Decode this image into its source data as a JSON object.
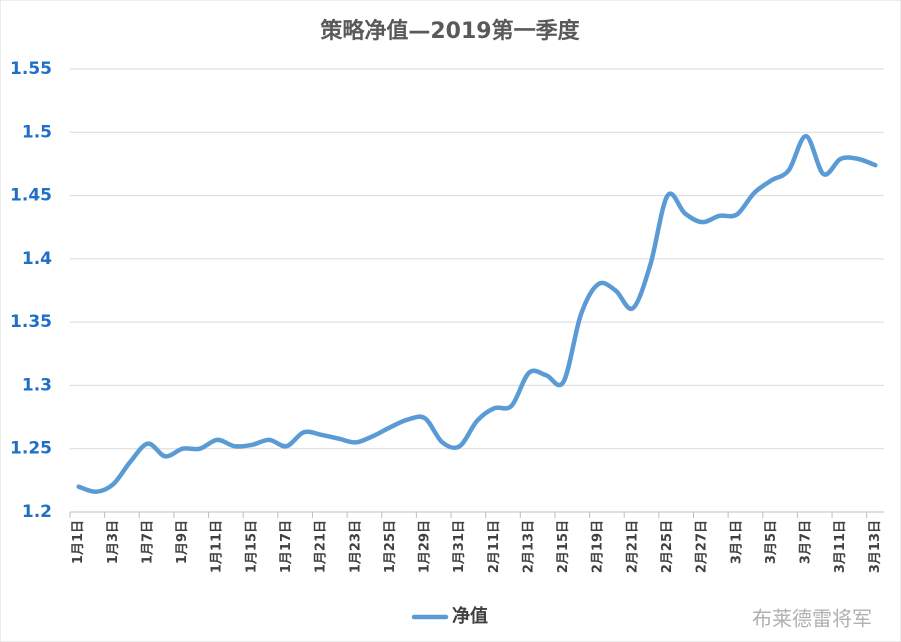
{
  "chart_data": {
    "type": "line",
    "title": "策略净值—2019第一季度",
    "categories": [
      "1月1日",
      null,
      "1月3日",
      null,
      "1月7日",
      null,
      "1月9日",
      null,
      "1月11日",
      null,
      "1月15日",
      null,
      "1月17日",
      null,
      "1月21日",
      null,
      "1月23日",
      null,
      "1月25日",
      null,
      "1月29日",
      null,
      "1月31日",
      null,
      "2月11日",
      null,
      "2月13日",
      null,
      "2月15日",
      null,
      "2月19日",
      null,
      "2月21日",
      null,
      "2月25日",
      null,
      "2月27日",
      null,
      "3月1日",
      null,
      "3月5日",
      null,
      "3月7日",
      null,
      "3月11日",
      null,
      "3月13日"
    ],
    "series": [
      {
        "name": "净值",
        "color": "#5b9bd5",
        "values": [
          1.22,
          1.216,
          1.222,
          1.24,
          1.254,
          1.244,
          1.25,
          1.25,
          1.257,
          1.252,
          1.253,
          1.257,
          1.252,
          1.263,
          1.261,
          1.258,
          1.255,
          1.26,
          1.267,
          1.273,
          1.274,
          1.255,
          1.252,
          1.272,
          1.282,
          1.284,
          1.31,
          1.308,
          1.303,
          1.356,
          1.38,
          1.375,
          1.361,
          1.395,
          1.45,
          1.436,
          1.429,
          1.434,
          1.435,
          1.452,
          1.462,
          1.47,
          1.497,
          1.467,
          1.479,
          1.479,
          1.474
        ]
      }
    ],
    "ylim": [
      1.2,
      1.55
    ],
    "yticks": [
      {
        "value": 1.2,
        "label": "1.2"
      },
      1.25,
      {
        "value": 1.3,
        "label": "1.3"
      },
      1.35,
      {
        "value": 1.4,
        "label": "1.4"
      },
      1.45,
      {
        "value": 1.5,
        "label": "1.5"
      },
      1.55
    ],
    "grid": true,
    "legend": "bottom",
    "smooth": true
  },
  "watermark": "布莱德雷将军"
}
